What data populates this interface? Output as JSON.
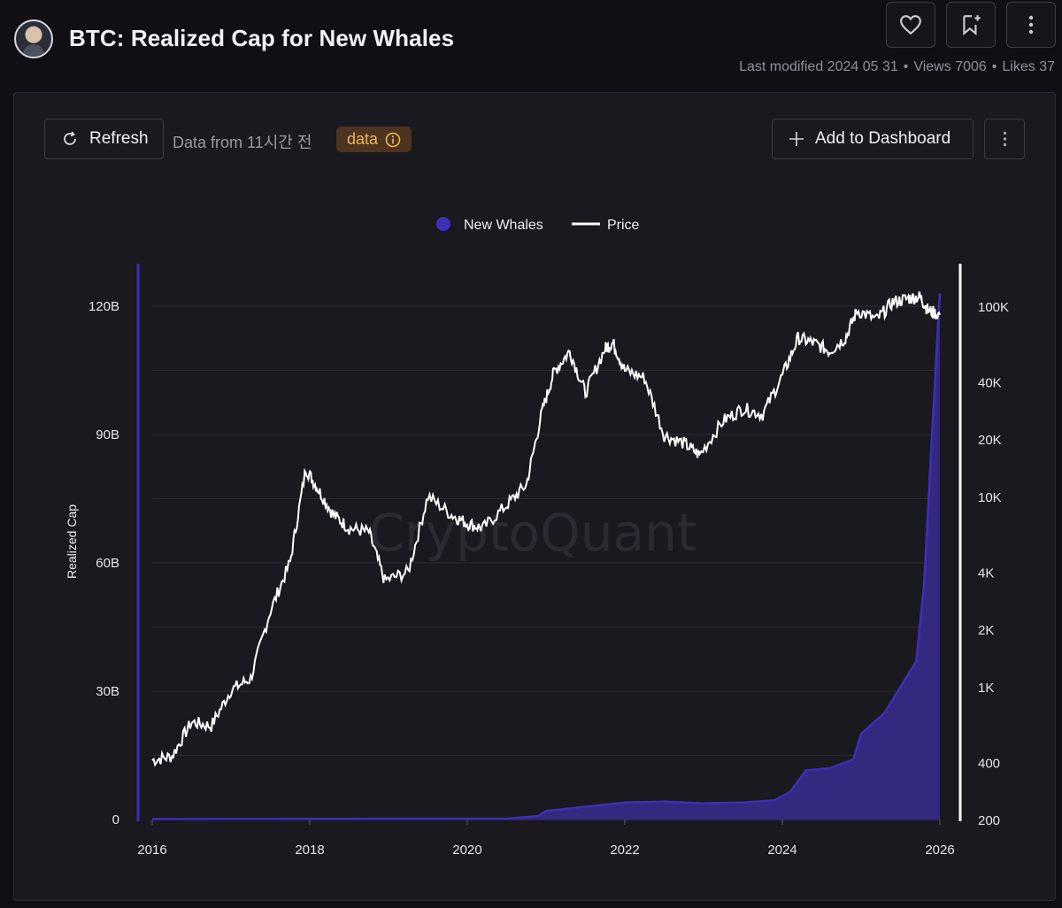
{
  "header": {
    "title": "BTC: Realized Cap for New Whales",
    "last_modified": "Last modified 2024 05 31",
    "views": "Views 7006",
    "likes": "Likes 37",
    "icons": [
      "heart-icon",
      "bookmark-add-icon",
      "more-vertical-icon"
    ]
  },
  "toolbar": {
    "refresh_label": "Refresh",
    "data_from": "Data from 11시간 전",
    "data_badge": "data",
    "add_dashboard_label": "Add to Dashboard"
  },
  "colors": {
    "whales": "#3d2fb8",
    "whales_fill": "#33297f",
    "price": "#ffffff",
    "badge_bg": "#4c3420",
    "badge_text": "#f0b45a"
  },
  "chart_data": {
    "type": "area",
    "watermark": "CryptoQuant",
    "legend": [
      {
        "name": "New Whales",
        "marker": "dot"
      },
      {
        "name": "Price",
        "marker": "line"
      }
    ],
    "x_ticks": [
      "2016",
      "2018",
      "2020",
      "2022",
      "2024",
      "2026"
    ],
    "x_range": [
      2016.0,
      2026.0
    ],
    "y_left": {
      "label": "Realized Cap",
      "ticks": [
        {
          "value": 0,
          "label": "0"
        },
        {
          "value": 30,
          "label": "30B"
        },
        {
          "value": 60,
          "label": "60B"
        },
        {
          "value": 90,
          "label": "90B"
        },
        {
          "value": 120,
          "label": "120B"
        }
      ],
      "range": [
        0,
        130
      ]
    },
    "y_right": {
      "scale": "log",
      "ticks": [
        {
          "value": 200,
          "label": "200"
        },
        {
          "value": 400,
          "label": "400"
        },
        {
          "value": 1000,
          "label": "1K"
        },
        {
          "value": 2000,
          "label": "2K"
        },
        {
          "value": 4000,
          "label": "4K"
        },
        {
          "value": 10000,
          "label": "10K"
        },
        {
          "value": 20000,
          "label": "20K"
        },
        {
          "value": 40000,
          "label": "40K"
        },
        {
          "value": 100000,
          "label": "100K"
        }
      ],
      "range": [
        200,
        150000
      ]
    },
    "series": [
      {
        "name": "New Whales",
        "axis": "left",
        "unit": "B",
        "x": [
          2016.0,
          2020.5,
          2020.9,
          2021.0,
          2021.5,
          2022.0,
          2022.5,
          2023.0,
          2023.5,
          2023.9,
          2024.1,
          2024.3,
          2024.6,
          2024.9,
          2025.0,
          2025.3,
          2025.5,
          2025.7,
          2025.8,
          2025.9,
          2026.0
        ],
        "values": [
          0.1,
          0.2,
          0.8,
          2.0,
          3.0,
          4.0,
          4.2,
          3.8,
          4.0,
          4.5,
          6.5,
          11.5,
          12.0,
          14.0,
          20.0,
          25.0,
          31.0,
          37.0,
          55.0,
          90.0,
          123.0
        ]
      },
      {
        "name": "Price",
        "axis": "right",
        "unit": "USD",
        "x": [
          2016.0,
          2016.25,
          2016.5,
          2016.75,
          2017.0,
          2017.25,
          2017.5,
          2017.75,
          2017.95,
          2018.1,
          2018.3,
          2018.5,
          2018.75,
          2018.95,
          2019.25,
          2019.5,
          2019.8,
          2020.0,
          2020.2,
          2020.5,
          2020.75,
          2020.95,
          2021.1,
          2021.3,
          2021.5,
          2021.75,
          2021.85,
          2022.0,
          2022.25,
          2022.5,
          2022.75,
          2022.95,
          2023.25,
          2023.5,
          2023.75,
          2024.0,
          2024.2,
          2024.4,
          2024.6,
          2024.8,
          2024.95,
          2025.2,
          2025.4,
          2025.6,
          2025.75,
          2025.85,
          2026.0
        ],
        "values": [
          410,
          430,
          650,
          620,
          960,
          1100,
          2500,
          4500,
          14000,
          11000,
          8000,
          6800,
          6500,
          3600,
          4000,
          10000,
          8000,
          7200,
          6800,
          9000,
          11500,
          28000,
          45000,
          58000,
          35000,
          60000,
          64000,
          46000,
          42000,
          21000,
          19000,
          16500,
          25000,
          29000,
          27000,
          43000,
          68000,
          64000,
          58000,
          68000,
          95000,
          85000,
          105000,
          110000,
          112000,
          95000,
          90000
        ]
      }
    ]
  }
}
